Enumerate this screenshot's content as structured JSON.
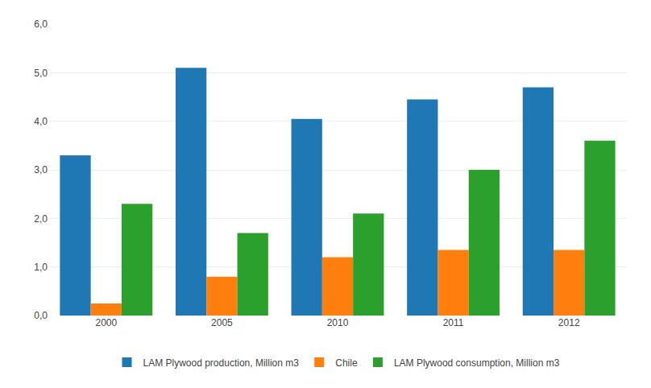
{
  "chart_data": {
    "type": "bar",
    "categories": [
      "2000",
      "2005",
      "2010",
      "2011",
      "2012"
    ],
    "series": [
      {
        "name": "LAM Plywood production, Million m3",
        "values": [
          3.3,
          5.1,
          4.05,
          4.45,
          4.7
        ]
      },
      {
        "name": "Chile",
        "values": [
          0.25,
          0.8,
          1.2,
          1.35,
          1.35
        ]
      },
      {
        "name": "LAM Plywood consumption, Million m3",
        "values": [
          2.3,
          1.7,
          2.1,
          3.0,
          3.6
        ]
      }
    ],
    "ylim": [
      0,
      6.0
    ],
    "yticks": [
      {
        "value": 0.0,
        "label": "0,0"
      },
      {
        "value": 1.0,
        "label": "1,0"
      },
      {
        "value": 2.0,
        "label": "2,0"
      },
      {
        "value": 3.0,
        "label": "3,0"
      },
      {
        "value": 4.0,
        "label": "4,0"
      },
      {
        "value": 5.0,
        "label": "5,0"
      },
      {
        "value": 6.0,
        "label": "6,0"
      }
    ],
    "grid": true,
    "legend": "bottom"
  }
}
